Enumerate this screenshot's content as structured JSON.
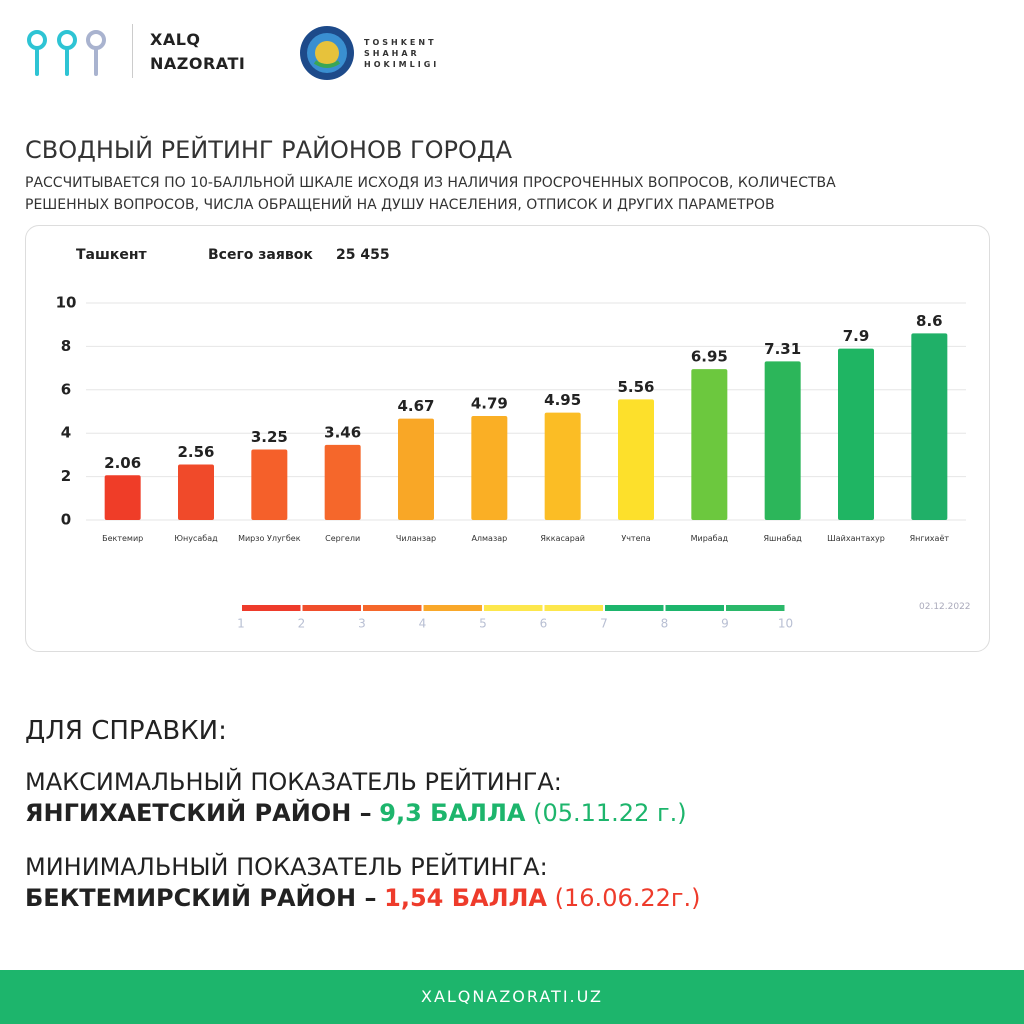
{
  "header": {
    "brand": [
      "XALQ",
      "NAZORATI"
    ],
    "partner": [
      "TOSHKENT",
      "SHAHAR",
      "HOKIMLIGI"
    ]
  },
  "title": "СВОДНЫЙ РЕЙТИНГ РАЙОНОВ ГОРОДА",
  "subtitle": [
    "РАССЧИТЫВАЕТСЯ ПО 10-БАЛЛЬНОЙ ШКАЛЕ ИСХОДЯ ИЗ НАЛИЧИЯ ПРОСРОЧЕННЫХ ВОПРОСОВ, КОЛИЧЕСТВА",
    "РЕШЕННЫХ ВОПРОСОВ, ЧИСЛА ОБРАЩЕНИЙ НА ДУШУ НАСЕЛЕНИЯ, ОТПИСОК И ДРУГИХ ПАРАМЕТРОВ"
  ],
  "chart_data": {
    "type": "bar",
    "city": "Ташкент",
    "total_label": "Всего заявок",
    "total": "25 455",
    "categories": [
      "Бектемир",
      "Юнусабад",
      "Мирзо Улугбек",
      "Сергели",
      "Чиланзар",
      "Алмазар",
      "Яккасарай",
      "Учтепа",
      "Мирабад",
      "Яшнабад",
      "Шайхантахур",
      "Янгихаёт"
    ],
    "values": [
      2.06,
      2.56,
      3.25,
      3.46,
      4.67,
      4.79,
      4.95,
      5.56,
      6.95,
      7.31,
      7.9,
      8.6
    ],
    "colors": [
      "#ef3d28",
      "#f04a2a",
      "#f5602a",
      "#f5672b",
      "#f9a726",
      "#faaf25",
      "#fbbd25",
      "#fde02b",
      "#6cc83e",
      "#2cb65a",
      "#1fb563",
      "#20b068"
    ],
    "ylim": [
      0,
      10
    ],
    "yticks": [
      0,
      2,
      4,
      6,
      8,
      10
    ],
    "grid": true,
    "date": "02.12.2022",
    "scale": {
      "labels": [
        1,
        2,
        3,
        4,
        5,
        6,
        7,
        8,
        9,
        10
      ],
      "colors": [
        "#ee3b2b",
        "#f04e2c",
        "#f5672b",
        "#f9a82a",
        "#fde74c",
        "#fde74c",
        "#1db56c",
        "#1db56c",
        "#2bb86a"
      ]
    }
  },
  "reference": {
    "heading": "ДЛЯ СПРАВКИ:",
    "max": {
      "label": "МАКСИМАЛЬНЫЙ ПОКАЗАТЕЛЬ РЕЙТИНГА:",
      "district": "ЯНГИХАЕТСКИЙ РАЙОН –",
      "score": "9,3 БАЛЛА",
      "date": "(05.11.22 г.)"
    },
    "min": {
      "label": "МИНИМАЛЬНЫЙ ПОКАЗАТЕЛЬ РЕЙТИНГА:",
      "district": "БЕКТЕМИРСКИЙ РАЙОН –",
      "score": "1,54 БАЛЛА",
      "date": "(16.06.22г.)"
    }
  },
  "footer": "XALQNAZORATI.UZ"
}
